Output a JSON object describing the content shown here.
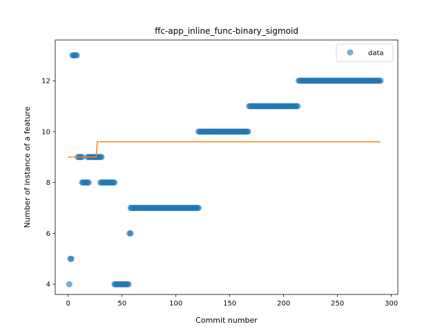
{
  "chart_data": {
    "type": "scatter",
    "title": "ffc-app_inline_func-binary_sigmoid",
    "xlabel": "Commit number",
    "ylabel": "Number of instance of a feature",
    "xlim": [
      -12,
      306
    ],
    "ylim": [
      3.6,
      13.6
    ],
    "xticks": [
      0,
      50,
      100,
      150,
      200,
      250,
      300
    ],
    "yticks": [
      4,
      6,
      8,
      10,
      12
    ],
    "grid": false,
    "legend": {
      "position": "top-right",
      "entries": [
        "data"
      ]
    },
    "colors": {
      "data": "#1f77b4",
      "trend": "#ff7f0e"
    },
    "series": [
      {
        "name": "data",
        "kind": "scatter",
        "segments": [
          {
            "y": 4,
            "x_from": 1,
            "x_to": 1
          },
          {
            "y": 5,
            "x_from": 2,
            "x_to": 3
          },
          {
            "y": 13,
            "x_from": 4,
            "x_to": 8
          },
          {
            "y": 9,
            "x_from": 9,
            "x_to": 13
          },
          {
            "y": 8,
            "x_from": 13,
            "x_to": 19
          },
          {
            "y": 9,
            "x_from": 18,
            "x_to": 31
          },
          {
            "y": 8,
            "x_from": 30,
            "x_to": 43
          },
          {
            "y": 4,
            "x_from": 43,
            "x_to": 56
          },
          {
            "y": 6,
            "x_from": 57,
            "x_to": 58
          },
          {
            "y": 7,
            "x_from": 58,
            "x_to": 121
          },
          {
            "y": 10,
            "x_from": 121,
            "x_to": 167
          },
          {
            "y": 11,
            "x_from": 168,
            "x_to": 213
          },
          {
            "y": 12,
            "x_from": 214,
            "x_to": 290
          }
        ]
      },
      {
        "kind": "line",
        "points": [
          [
            0,
            9.0
          ],
          [
            26,
            9.0
          ],
          [
            27,
            9.6
          ],
          [
            290,
            9.6
          ]
        ]
      }
    ]
  }
}
